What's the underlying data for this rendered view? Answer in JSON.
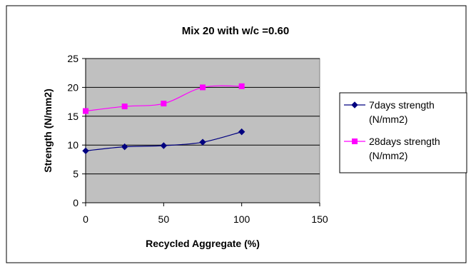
{
  "chart_data": {
    "type": "line",
    "title": "Mix 20 with w/c =0.60",
    "xlabel": "Recycled Aggregate (%)",
    "ylabel": "Strength (N/mm2)",
    "xlim": [
      0,
      150
    ],
    "ylim": [
      0,
      25
    ],
    "xticks": [
      "0",
      "50",
      "100",
      "150"
    ],
    "yticks": [
      "0",
      "5",
      "10",
      "15",
      "20",
      "25"
    ],
    "grid": "horizontal",
    "legend_position": "right",
    "plot_background": "#C0C0C0",
    "x": [
      0,
      25,
      50,
      75,
      100
    ],
    "series": [
      {
        "name_line1": "7days strength",
        "name_line2": "(N/mm2)",
        "values": [
          9.0,
          9.7,
          9.9,
          10.5,
          12.3
        ],
        "color": "#000080",
        "marker": "diamond"
      },
      {
        "name_line1": "28days strength",
        "name_line2": "(N/mm2)",
        "values": [
          15.9,
          16.7,
          17.2,
          20.0,
          20.2
        ],
        "color": "#FF00FF",
        "marker": "square"
      }
    ]
  }
}
